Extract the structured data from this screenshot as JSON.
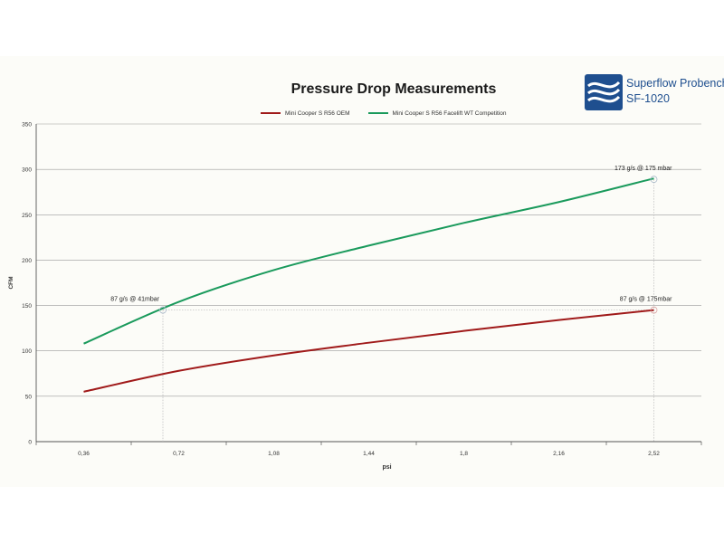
{
  "logo": {
    "line1": "Superflow Probench",
    "line2": "SF-1020",
    "brand_color": "#1f4f8f"
  },
  "chart_data": {
    "type": "line",
    "title": "Pressure Drop Measurements",
    "xlabel": "psi",
    "ylabel": "CFM",
    "categories": [
      "0,36",
      "0,72",
      "1,08",
      "1,44",
      "1,8",
      "2,16",
      "2,52"
    ],
    "x": [
      0.36,
      0.72,
      1.08,
      1.44,
      1.8,
      2.16,
      2.52
    ],
    "xlim": [
      0.18,
      2.7
    ],
    "ylim": [
      0,
      350
    ],
    "yticks": [
      0,
      50,
      100,
      150,
      200,
      250,
      300,
      350
    ],
    "grid": true,
    "legend_position": "top",
    "series": [
      {
        "name": "Mini Cooper S R56 OEM",
        "color": "#a01a1a",
        "values": [
          55,
          78,
          95,
          109,
          122,
          134,
          145
        ]
      },
      {
        "name": "Mini Cooper S R56 Facelift WT Competition",
        "color": "#1a9a5c",
        "values": [
          108,
          154,
          189,
          216,
          241,
          264,
          290
        ]
      }
    ],
    "annotations": [
      {
        "text": "87 g/s @ 41mbar",
        "x": 0.66,
        "y": 145
      },
      {
        "text": "173 g/s @ 175 mbar",
        "x": 2.52,
        "y": 289
      },
      {
        "text": "87 g/s @ 175mbar",
        "x": 2.52,
        "y": 145
      }
    ]
  }
}
